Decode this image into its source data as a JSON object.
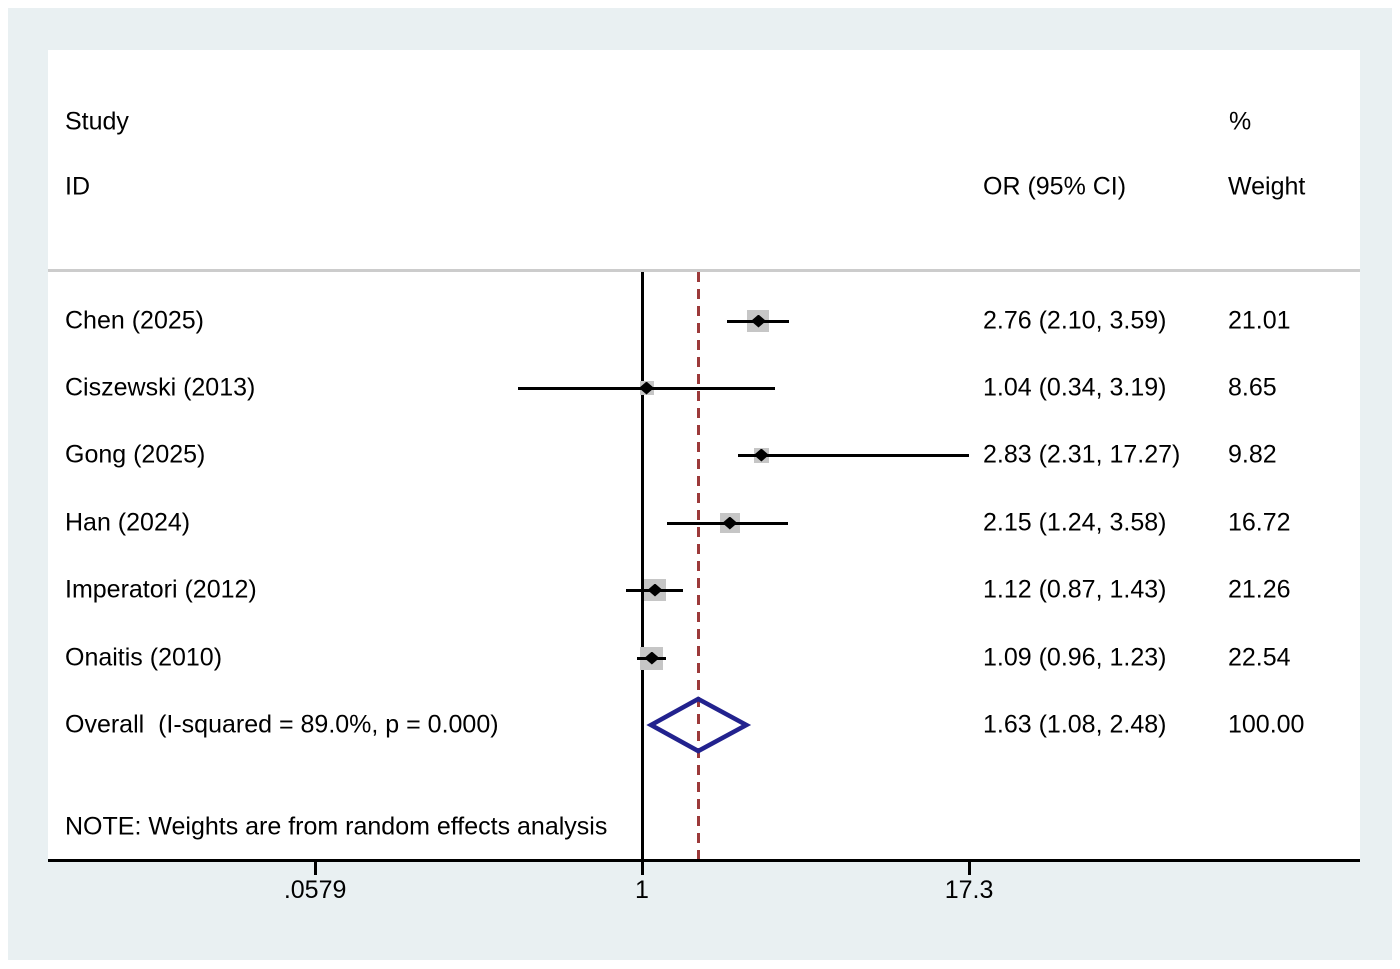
{
  "chart_data": {
    "type": "forest",
    "columns": {
      "study_line1": "Study",
      "study_line2": "ID",
      "or_header": "OR (95% CI)",
      "weight_line1": "%",
      "weight_line2": "Weight"
    },
    "studies": [
      {
        "id": "Chen (2025)",
        "or": 2.76,
        "ci_low": 2.1,
        "ci_high": 3.59,
        "or_label": "2.76 (2.10, 3.59)",
        "weight": "21.01"
      },
      {
        "id": "Ciszewski (2013)",
        "or": 1.04,
        "ci_low": 0.34,
        "ci_high": 3.19,
        "or_label": "1.04 (0.34, 3.19)",
        "weight": "8.65"
      },
      {
        "id": "Gong (2025)",
        "or": 2.83,
        "ci_low": 2.31,
        "ci_high": 17.27,
        "or_label": "2.83 (2.31, 17.27)",
        "weight": "9.82"
      },
      {
        "id": "Han (2024)",
        "or": 2.15,
        "ci_low": 1.24,
        "ci_high": 3.58,
        "or_label": "2.15 (1.24, 3.58)",
        "weight": "16.72"
      },
      {
        "id": "Imperatori (2012)",
        "or": 1.12,
        "ci_low": 0.87,
        "ci_high": 1.43,
        "or_label": "1.12 (0.87, 1.43)",
        "weight": "21.26"
      },
      {
        "id": "Onaitis (2010)",
        "or": 1.09,
        "ci_low": 0.96,
        "ci_high": 1.23,
        "or_label": "1.09 (0.96, 1.23)",
        "weight": "22.54"
      }
    ],
    "overall": {
      "id": "Overall  (I-squared = 89.0%, p = 0.000)",
      "or": 1.63,
      "ci_low": 1.08,
      "ci_high": 2.48,
      "or_label": "1.63 (1.08, 2.48)",
      "weight": "100.00"
    },
    "note": "NOTE: Weights are from random effects analysis",
    "x_axis": {
      "scale": "log",
      "tick_labels": [
        ".0579",
        "1",
        "17.3"
      ],
      "tick_values": [
        0.0579,
        1,
        17.3
      ],
      "null_line_value": 1,
      "overall_line_value": 1.63
    },
    "colors": {
      "frame_bg": "#e9f0f2",
      "plot_bg": "#ffffff",
      "line": "#000000",
      "marker_square": "#c6c6c6",
      "marker_diamond": "#000000",
      "overall_diamond": "#22228e",
      "dashed_line": "#9c3a3a",
      "separator": "#cccccc"
    }
  }
}
